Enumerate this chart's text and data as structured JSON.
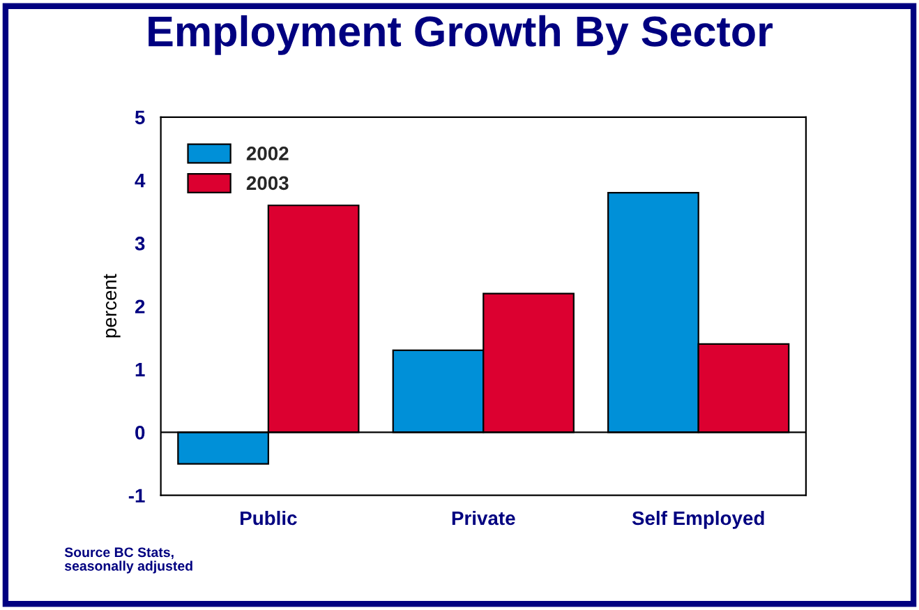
{
  "chart_data": {
    "type": "bar",
    "title": "Employment Growth By Sector",
    "ylabel": "percent",
    "categories": [
      "Public",
      "Private",
      "Self Employed"
    ],
    "series": [
      {
        "name": "2002",
        "color": "#0090d8",
        "values": [
          -0.5,
          1.3,
          3.8
        ]
      },
      {
        "name": "2003",
        "color": "#dc0030",
        "values": [
          3.6,
          2.2,
          1.4
        ]
      }
    ],
    "ylim": [
      -1,
      5
    ],
    "yticks": [
      -1,
      0,
      1,
      2,
      3,
      4,
      5
    ],
    "grid": false,
    "legend": "top left",
    "ref_lines": [
      {
        "axis": "y",
        "value": 0,
        "label": null
      }
    ],
    "annotations": [
      "Source BC Stats,\nseasonally adjusted"
    ]
  }
}
